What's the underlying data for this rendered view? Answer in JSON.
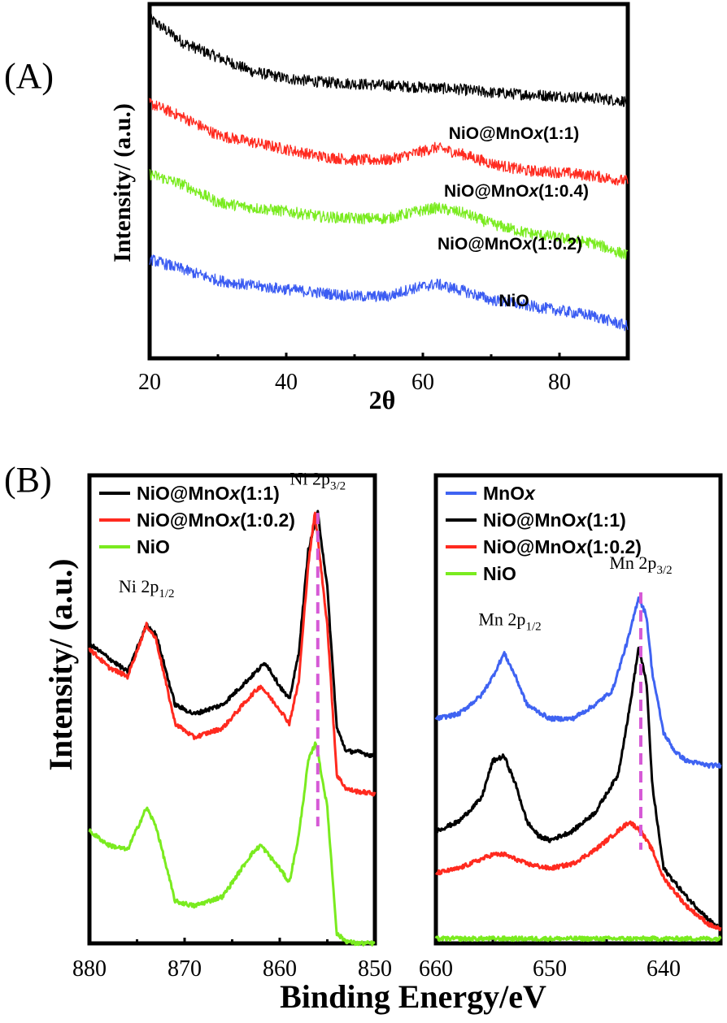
{
  "chart_data": [
    {
      "panel": "(A)",
      "type": "line",
      "title": "",
      "xlabel": "2θ",
      "ylabel": "Intensity/ (a.u.)",
      "xlim": [
        20,
        90
      ],
      "ylim": [
        0,
        100
      ],
      "xticks": [
        20,
        40,
        60,
        80
      ],
      "xtick_labels": [
        "20",
        "40",
        "60",
        "80"
      ],
      "grid": false,
      "series": [
        {
          "name": "NiO@MnOx(1:1)",
          "label_main": "NiO@MnO",
          "label_italic": "x",
          "label_suffix": "(1:1)",
          "color": "#000000",
          "x": [
            20,
            25,
            30,
            35,
            40,
            45,
            50,
            55,
            60,
            62,
            65,
            70,
            75,
            80,
            85,
            90
          ],
          "y": [
            96,
            89,
            85,
            81,
            79,
            78,
            77.5,
            77,
            76.5,
            76.3,
            76,
            75,
            74.5,
            74,
            73.5,
            72.5
          ]
        },
        {
          "name": "NiO@MnOx(1:0.4)",
          "label_main": "NiO@MnO",
          "label_italic": "x",
          "label_suffix": "(1:0.4)",
          "color": "#ff2a1f",
          "x": [
            20,
            25,
            30,
            35,
            40,
            45,
            50,
            55,
            58,
            62,
            66,
            70,
            75,
            80,
            85,
            90
          ],
          "y": [
            72,
            68,
            63,
            61,
            59,
            57,
            56,
            56,
            57.5,
            59.5,
            57.5,
            55,
            53,
            52.5,
            51.5,
            50
          ]
        },
        {
          "name": "NiO@MnOx(1:0.2)",
          "label_main": "NiO@MnO",
          "label_italic": "x",
          "label_suffix": "(1:0.2)",
          "color": "#7aeb1f",
          "x": [
            20,
            25,
            30,
            35,
            40,
            45,
            50,
            55,
            58,
            62,
            66,
            70,
            75,
            80,
            85,
            90
          ],
          "y": [
            52,
            49,
            44,
            42.5,
            41.5,
            40,
            39.5,
            39.5,
            41,
            42.5,
            41,
            38,
            35.5,
            34,
            32.5,
            29
          ]
        },
        {
          "name": "NiO",
          "label_main": "NiO",
          "label_italic": "",
          "label_suffix": "",
          "color": "#3b5cf2",
          "x": [
            20,
            25,
            30,
            35,
            40,
            45,
            50,
            55,
            58,
            62,
            66,
            70,
            75,
            80,
            85,
            90
          ],
          "y": [
            28,
            25,
            22,
            20.5,
            19.5,
            18.5,
            17.5,
            17.5,
            19.5,
            21,
            19,
            16.5,
            15,
            13.5,
            12,
            9
          ]
        }
      ]
    },
    {
      "panel": "(B)",
      "type": "line",
      "title": "",
      "xlabel": "Binding Energy/eV",
      "ylabel": "Intensity/ (a.u.)",
      "xlim": [
        880,
        850
      ],
      "ylim": [
        0,
        100
      ],
      "xticks": [
        880,
        870,
        860,
        850
      ],
      "xtick_labels": [
        "880",
        "870",
        "860",
        "850"
      ],
      "grid": false,
      "legend": "top-left",
      "annotations": [
        {
          "text": "Ni 2p",
          "sub": "1/2",
          "x": 874,
          "y": 75
        },
        {
          "text": "Ni 2p",
          "sub": "3/2",
          "x": 856,
          "y": 98
        }
      ],
      "dashed_marker": {
        "x": 856,
        "y_from": 92,
        "y_to": 25,
        "color": "#d65ad6"
      },
      "series": [
        {
          "name": "NiO@MnOx(1:1)",
          "label_main": "NiO@MnO",
          "label_italic": "x",
          "label_suffix": "(1:1)",
          "color": "#000000",
          "x": [
            880,
            878,
            876,
            874,
            873,
            871,
            869,
            866,
            863,
            861.5,
            860,
            859,
            858,
            857,
            856,
            855,
            854,
            853,
            852,
            850
          ],
          "y": [
            64,
            61,
            58,
            68,
            66,
            51,
            49,
            51,
            57,
            60,
            55,
            52,
            62,
            84,
            92,
            76,
            46,
            41,
            41,
            40
          ]
        },
        {
          "name": "NiO@MnOx(1:0.2)",
          "label_main": "NiO@MnO",
          "label_italic": "x",
          "label_suffix": "(1:0.2)",
          "color": "#ff2a1f",
          "x": [
            880,
            878,
            876,
            874,
            873,
            871,
            869,
            866,
            863,
            862,
            860,
            859,
            858,
            857,
            856.3,
            855,
            854,
            853,
            852,
            850
          ],
          "y": [
            63,
            59,
            57,
            68,
            65,
            47,
            44,
            46,
            53,
            55,
            50,
            47,
            56,
            81,
            92,
            68,
            36,
            33,
            32.5,
            32
          ]
        },
        {
          "name": "NiO",
          "label_main": "NiO",
          "label_italic": "",
          "label_suffix": "",
          "color": "#7aeb1f",
          "x": [
            880,
            878,
            876,
            874,
            873,
            871,
            869,
            866,
            863,
            862,
            860,
            859,
            858,
            857,
            856.2,
            855,
            854,
            853,
            852,
            850
          ],
          "y": [
            24,
            21,
            20,
            29,
            25,
            9,
            8,
            10,
            19,
            21,
            16,
            13,
            23,
            39,
            43,
            29,
            2,
            0.5,
            0,
            0
          ]
        }
      ]
    },
    {
      "panel": "",
      "type": "line",
      "title": "",
      "xlabel": "Binding Energy/eV",
      "ylabel": "",
      "xlim": [
        660,
        635
      ],
      "ylim": [
        0,
        100
      ],
      "xticks": [
        660,
        650,
        640
      ],
      "xtick_labels": [
        "660",
        "650",
        "640"
      ],
      "grid": false,
      "legend": "top-left",
      "annotations": [
        {
          "text": "Mn 2p",
          "sub": "1/2",
          "x": 653.5,
          "y": 68
        },
        {
          "text": "Mn 2p",
          "sub": "3/2",
          "x": 642,
          "y": 80
        }
      ],
      "dashed_marker": {
        "x": 642,
        "y_from": 75,
        "y_to": 20,
        "color": "#d65ad6"
      },
      "series": [
        {
          "name": "MnOx",
          "label_main": "MnO",
          "label_italic": "x",
          "label_suffix": "",
          "color": "#3f63f2",
          "x": [
            660,
            658,
            656,
            655,
            654,
            653,
            652,
            650,
            648,
            646,
            644.5,
            643,
            642.2,
            641.5,
            641,
            640,
            639,
            638,
            636,
            635
          ],
          "y": [
            48,
            49,
            53,
            57,
            62,
            57,
            51,
            48,
            48,
            51,
            54,
            66,
            74,
            70,
            58,
            45,
            41,
            39,
            38,
            38
          ]
        },
        {
          "name": "NiO@MnOx(1:1)",
          "label_main": "NiO@MnO",
          "label_italic": "x",
          "label_suffix": "(1:1)",
          "color": "#000000",
          "x": [
            660,
            658,
            656,
            655,
            654,
            653,
            652,
            651,
            650,
            648,
            646,
            644,
            643,
            642.2,
            641.5,
            641,
            640,
            638,
            636,
            635
          ],
          "y": [
            24,
            26,
            31,
            39,
            40,
            34,
            26,
            23,
            22,
            24,
            28,
            36,
            50,
            63,
            56,
            34,
            16,
            10,
            5,
            3
          ]
        },
        {
          "name": "NiO@MnOx(1:0.2)",
          "label_main": "NiO@MnO",
          "label_italic": "x",
          "label_suffix": "(1:0.2)",
          "color": "#ff2a1f",
          "x": [
            660,
            658,
            656,
            655,
            654,
            652,
            650,
            648,
            646,
            644,
            643,
            642,
            641,
            640,
            638,
            636,
            635
          ],
          "y": [
            15,
            16,
            18,
            19,
            19,
            17,
            16,
            17,
            20,
            24,
            26,
            24,
            20,
            14,
            8,
            4,
            3
          ]
        },
        {
          "name": "NiO",
          "label_main": "NiO",
          "label_italic": "",
          "label_suffix": "",
          "color": "#7aeb1f",
          "x": [
            660,
            635
          ],
          "y": [
            1,
            1
          ]
        }
      ]
    }
  ]
}
